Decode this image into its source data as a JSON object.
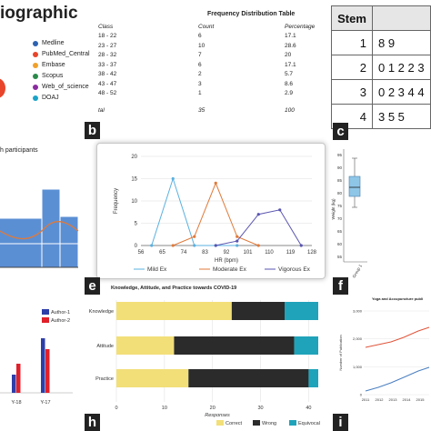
{
  "panel_a": {
    "title": "iographic",
    "legend": [
      {
        "label": "Medline",
        "color": "#2e62b0"
      },
      {
        "label": "PubMed_Central",
        "color": "#e8452b"
      },
      {
        "label": "Embase",
        "color": "#f0a12b"
      },
      {
        "label": "Scopus",
        "color": "#2a8a4a"
      },
      {
        "label": "Web_of_science",
        "color": "#8a2ca0"
      },
      {
        "label": "DOAJ",
        "color": "#1aa3c8"
      }
    ]
  },
  "panel_b": {
    "letter": "b",
    "title": "Frequency Distribution Table",
    "headers": [
      "Class",
      "Count",
      "Percentage"
    ],
    "rows": [
      [
        "18 - 22",
        "6",
        "17.1"
      ],
      [
        "23 - 27",
        "10",
        "28.6"
      ],
      [
        "28 - 32",
        "7",
        "20"
      ],
      [
        "33 - 37",
        "6",
        "17.1"
      ],
      [
        "38 - 42",
        "2",
        "5.7"
      ],
      [
        "43 - 47",
        "3",
        "8.6"
      ],
      [
        "48 - 52",
        "1",
        "2.9"
      ]
    ],
    "total": [
      "tal",
      "35",
      "100"
    ]
  },
  "panel_c": {
    "letter": "c",
    "header": "Stem",
    "rows": [
      [
        "1",
        "8 9"
      ],
      [
        "2",
        "0 1 2 2 3"
      ],
      [
        "3",
        "0 2 3 4 4"
      ],
      [
        "4",
        "3 5 5"
      ]
    ]
  },
  "panel_d": {
    "title": "h participants"
  },
  "panel_e": {
    "letter": "e",
    "chart_data": {
      "type": "line",
      "xlabel": "HR (bpm)",
      "ylabel": "Frequency",
      "x_ticks": [
        56,
        65,
        74,
        83,
        92,
        101,
        110,
        119,
        128
      ],
      "ylim": [
        0,
        20
      ],
      "y_ticks": [
        0,
        5,
        10,
        15,
        20
      ],
      "series": [
        {
          "name": "Mild Ex",
          "color": "#5ab0e0",
          "x": [
            60.5,
            69.5,
            78.5,
            87.5,
            96.5
          ],
          "values": [
            0,
            15,
            0,
            0,
            0
          ]
        },
        {
          "name": "Moderate Ex",
          "color": "#e07a3a",
          "x": [
            69.5,
            78.5,
            87.5,
            96.5,
            105.5
          ],
          "values": [
            0,
            2,
            14,
            2,
            0
          ]
        },
        {
          "name": "Vigorous Ex",
          "color": "#5a55b0",
          "x": [
            87.5,
            96.5,
            105.5,
            114.5,
            123.5
          ],
          "values": [
            0,
            1,
            7,
            8,
            0
          ]
        }
      ]
    }
  },
  "panel_f": {
    "letter": "f",
    "ylabel": "Weight (kg)",
    "y_ticks": [
      "95",
      "90",
      "85",
      "80",
      "75",
      "70",
      "65",
      "60",
      "55"
    ],
    "xlabel": "Group 1"
  },
  "panel_g": {
    "legend": [
      "Author-1",
      "Author-2"
    ],
    "x_ticks": [
      "Y-18",
      "Y-17"
    ],
    "chart_data": {
      "type": "bar",
      "categories": [
        "Y-18",
        "Y-17"
      ],
      "series": [
        {
          "name": "Author-1",
          "color": "#2d3ea8",
          "values": [
            1.0,
            3.0
          ]
        },
        {
          "name": "Author-2",
          "color": "#e0202a",
          "values": [
            1.6,
            2.4
          ]
        }
      ]
    }
  },
  "panel_h": {
    "letter": "h",
    "title": "Knowledge, Attitude, and Practice towards COVID-19",
    "xlabel": "Responses",
    "chart_data": {
      "type": "bar",
      "categories": [
        "Knowledge",
        "Attitude",
        "Practice"
      ],
      "x_ticks": [
        0,
        10,
        20,
        30,
        40
      ],
      "xlim": [
        0,
        42
      ],
      "series": [
        {
          "name": "Correct",
          "color": "#f2df78",
          "values": [
            24,
            12,
            15
          ]
        },
        {
          "name": "Wrong",
          "color": "#2b2b2b",
          "values": [
            11,
            25,
            25
          ]
        },
        {
          "name": "Equivocal",
          "color": "#1fa3ba",
          "values": [
            7,
            5,
            2
          ]
        }
      ]
    }
  },
  "panel_i": {
    "letter": "i",
    "title": "Yoga and Accupuncture publi",
    "ylabel": "Number of Publication",
    "y_ticks": [
      "3,000",
      "2,000",
      "1,000",
      "0"
    ],
    "x_ticks": [
      "2011",
      "2012",
      "2013",
      "2014",
      "2015"
    ]
  }
}
